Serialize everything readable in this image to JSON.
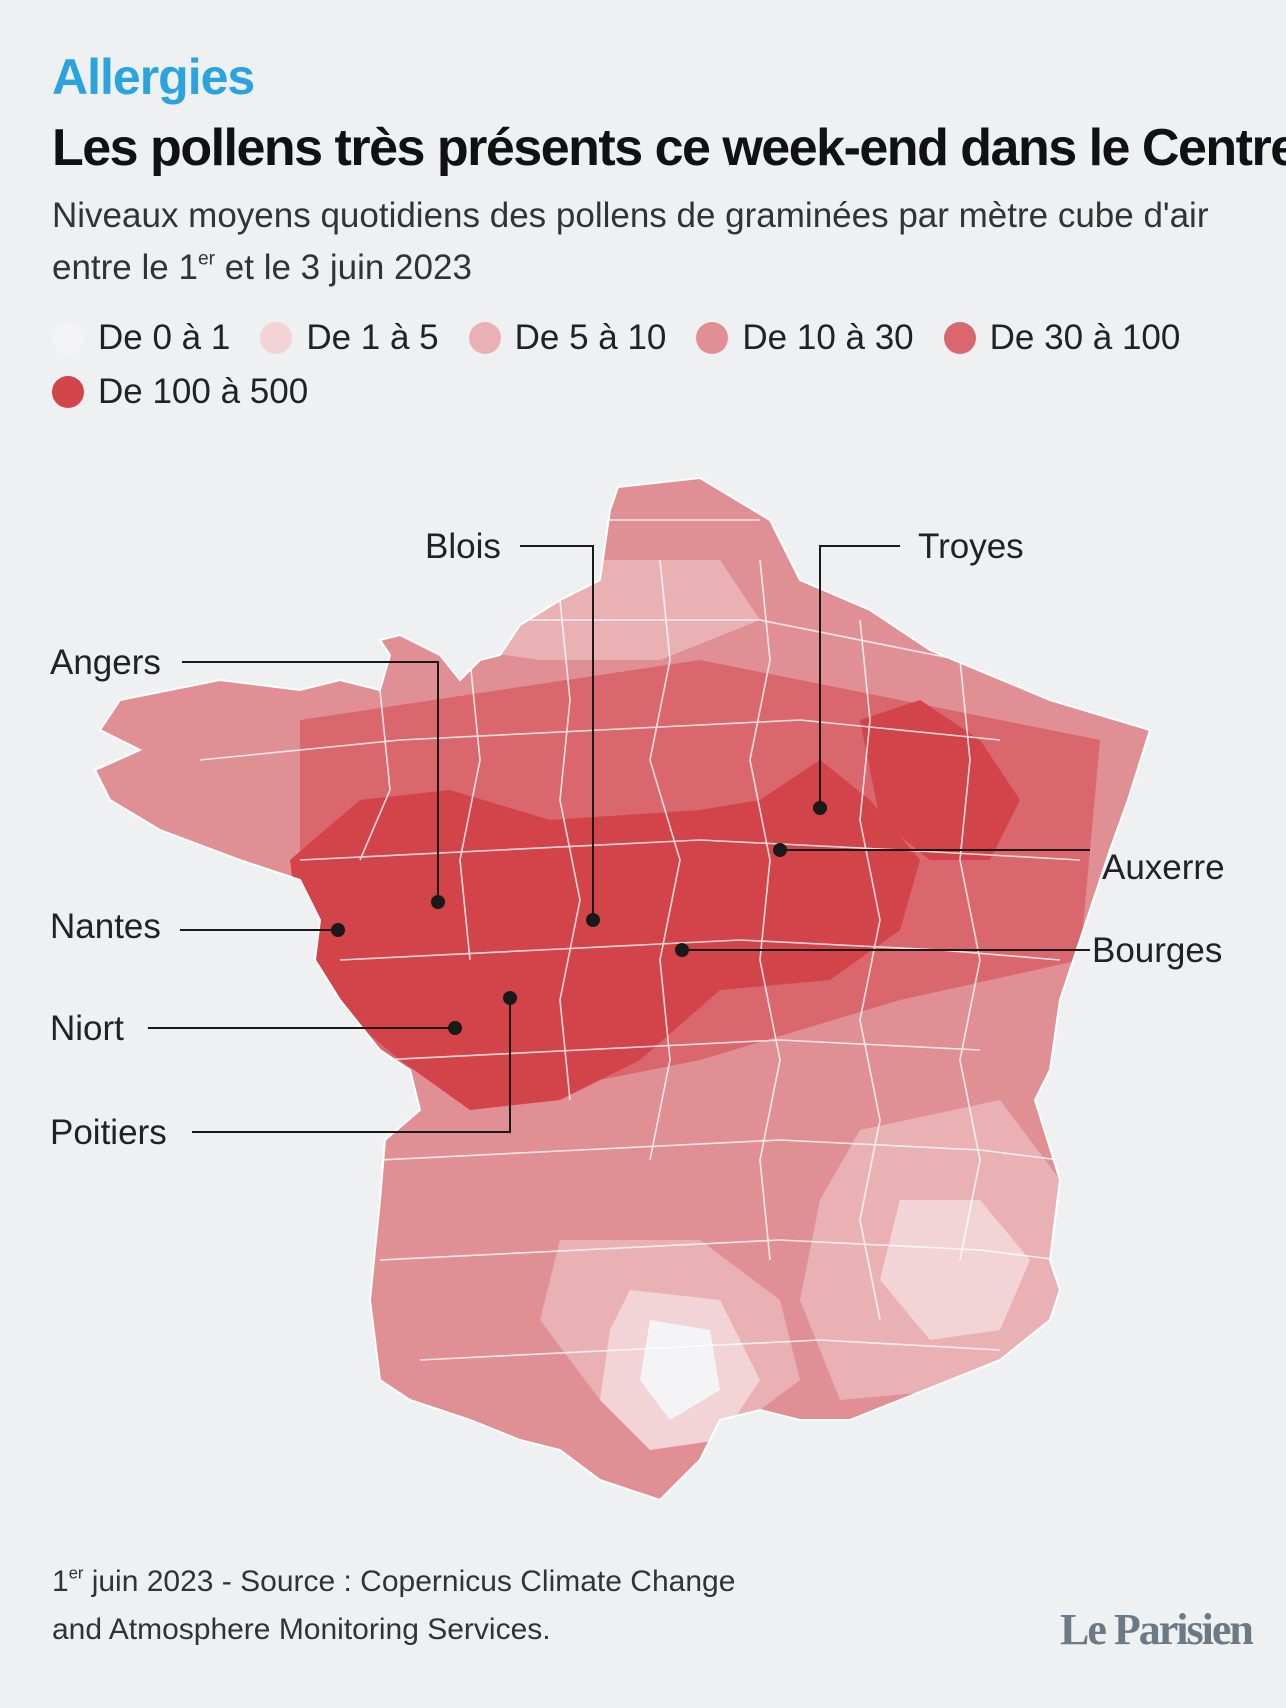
{
  "header": {
    "kicker": "Allergies",
    "title": "Les pollens très présents ce week-end dans le Centre",
    "subtitle_pre": "Niveaux moyens quotidiens des pollens de graminées par mètre cube d'air entre le 1",
    "subtitle_sup": "er",
    "subtitle_post": " et le 3 juin 2023"
  },
  "legend": [
    {
      "label": "De 0 à 1",
      "color": "#f4f4f6"
    },
    {
      "label": "De 1 à 5",
      "color": "#f2d3d6"
    },
    {
      "label": "De 5 à 10",
      "color": "#eab1b5"
    },
    {
      "label": "De 10 à 30",
      "color": "#e08f94"
    },
    {
      "label": "De 30 à 100",
      "color": "#d9676d"
    },
    {
      "label": "De 100 à 500",
      "color": "#d2434a"
    }
  ],
  "cities": {
    "blois": "Blois",
    "troyes": "Troyes",
    "angers": "Angers",
    "auxerre": "Auxerre",
    "nantes": "Nantes",
    "bourges": "Bourges",
    "niort": "Niort",
    "poitiers": "Poitiers"
  },
  "footer": {
    "source_sup_num": "1",
    "source_sup": "er",
    "source_line1": " juin 2023 - Source : Copernicus Climate Change",
    "source_line2": "and Atmosphere Monitoring Services.",
    "logo": "Le Parisien"
  },
  "colors": {
    "kicker": "#2aa3df",
    "background": "#eef0f2",
    "marker": "#1a1a1a"
  }
}
